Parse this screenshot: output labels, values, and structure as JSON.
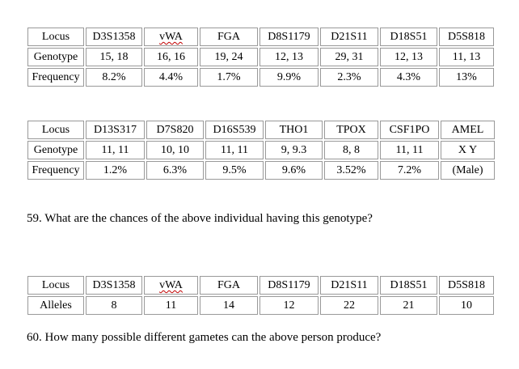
{
  "table1": {
    "rows": [
      {
        "label": "Locus",
        "cells": [
          "D3S1358",
          "vWA",
          "FGA",
          "D8S1179",
          "D21S11",
          "D18S51",
          "D5S818"
        ]
      },
      {
        "label": "Genotype",
        "cells": [
          "15, 18",
          "16, 16",
          "19, 24",
          "12, 13",
          "29, 31",
          "12, 13",
          "11, 13"
        ]
      },
      {
        "label": "Frequency",
        "cells": [
          "8.2%",
          "4.4%",
          "1.7%",
          "9.9%",
          "2.3%",
          "4.3%",
          "13%"
        ]
      }
    ]
  },
  "table2": {
    "rows": [
      {
        "label": "Locus",
        "cells": [
          "D13S317",
          "D7S820",
          "D16S539",
          "THO1",
          "TPOX",
          "CSF1PO",
          "AMEL"
        ]
      },
      {
        "label": "Genotype",
        "cells": [
          "11, 11",
          "10, 10",
          "11, 11",
          "9, 9.3",
          "8, 8",
          "11, 11",
          "X Y"
        ]
      },
      {
        "label": "Frequency",
        "cells": [
          "1.2%",
          "6.3%",
          "9.5%",
          "9.6%",
          "3.52%",
          "7.2%",
          "(Male)"
        ]
      }
    ]
  },
  "question59": "59.  What are the chances of the above individual having this genotype?",
  "table3": {
    "rows": [
      {
        "label": "Locus",
        "cells": [
          "D3S1358",
          "vWA",
          "FGA",
          "D8S1179",
          "D21S11",
          "D18S51",
          "D5S818"
        ]
      },
      {
        "label": "Alleles",
        "cells": [
          "8",
          "11",
          "14",
          "12",
          "22",
          "21",
          "10"
        ]
      }
    ]
  },
  "question60": "60.  How many possible different gametes can the above person produce?"
}
